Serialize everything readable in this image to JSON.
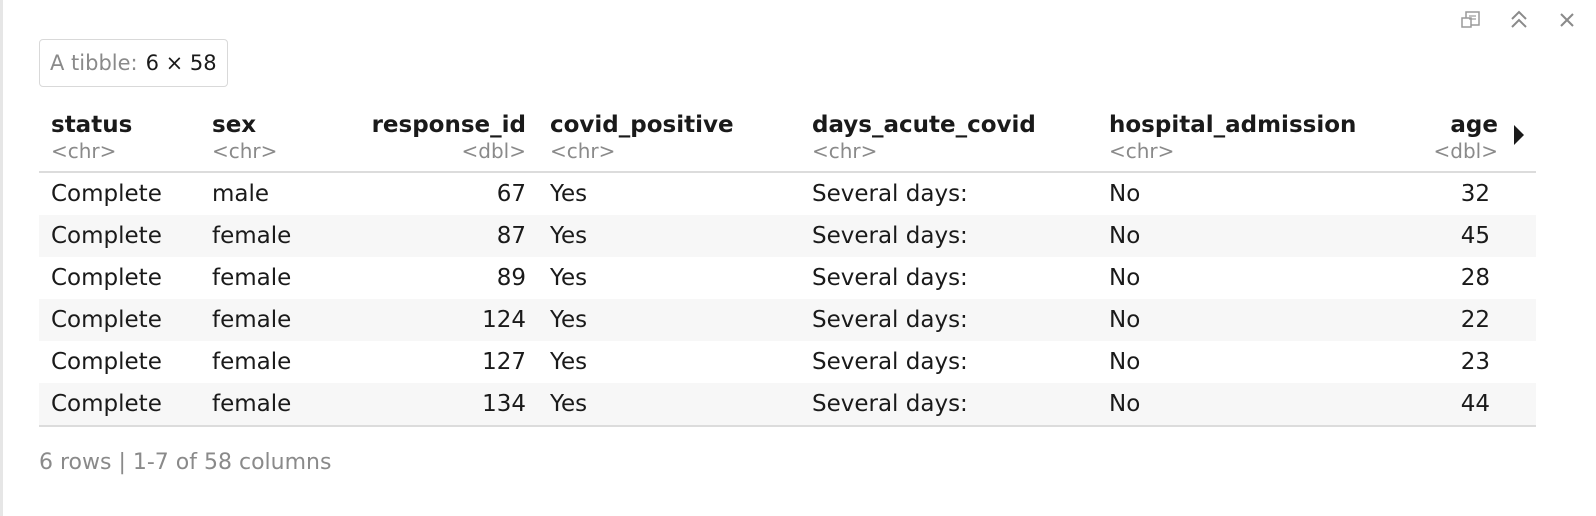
{
  "toolbar": {
    "icons": [
      "export-icon",
      "collapse-icon",
      "close-icon"
    ]
  },
  "badge": {
    "label": "A tibble:",
    "value": "6 × 58"
  },
  "table": {
    "columns": [
      {
        "name": "status",
        "type": "<chr>"
      },
      {
        "name": "sex",
        "type": "<chr>"
      },
      {
        "name": "response_id",
        "type": "<dbl>"
      },
      {
        "name": "covid_positive",
        "type": "<chr>"
      },
      {
        "name": "days_acute_covid",
        "type": "<chr>"
      },
      {
        "name": "hospital_admission",
        "type": "<chr>"
      },
      {
        "name": "age",
        "type": "<dbl>"
      }
    ],
    "rows": [
      [
        "Complete",
        "male",
        "67",
        "Yes",
        "Several days:",
        "No",
        "32"
      ],
      [
        "Complete",
        "female",
        "87",
        "Yes",
        "Several days:",
        "No",
        "45"
      ],
      [
        "Complete",
        "female",
        "89",
        "Yes",
        "Several days:",
        "No",
        "28"
      ],
      [
        "Complete",
        "female",
        "124",
        "Yes",
        "Several days:",
        "No",
        "22"
      ],
      [
        "Complete",
        "female",
        "127",
        "Yes",
        "Several days:",
        "No",
        "23"
      ],
      [
        "Complete",
        "female",
        "134",
        "Yes",
        "Several days:",
        "No",
        "44"
      ]
    ]
  },
  "footer": {
    "summary": "6 rows | 1-7 of 58 columns"
  }
}
